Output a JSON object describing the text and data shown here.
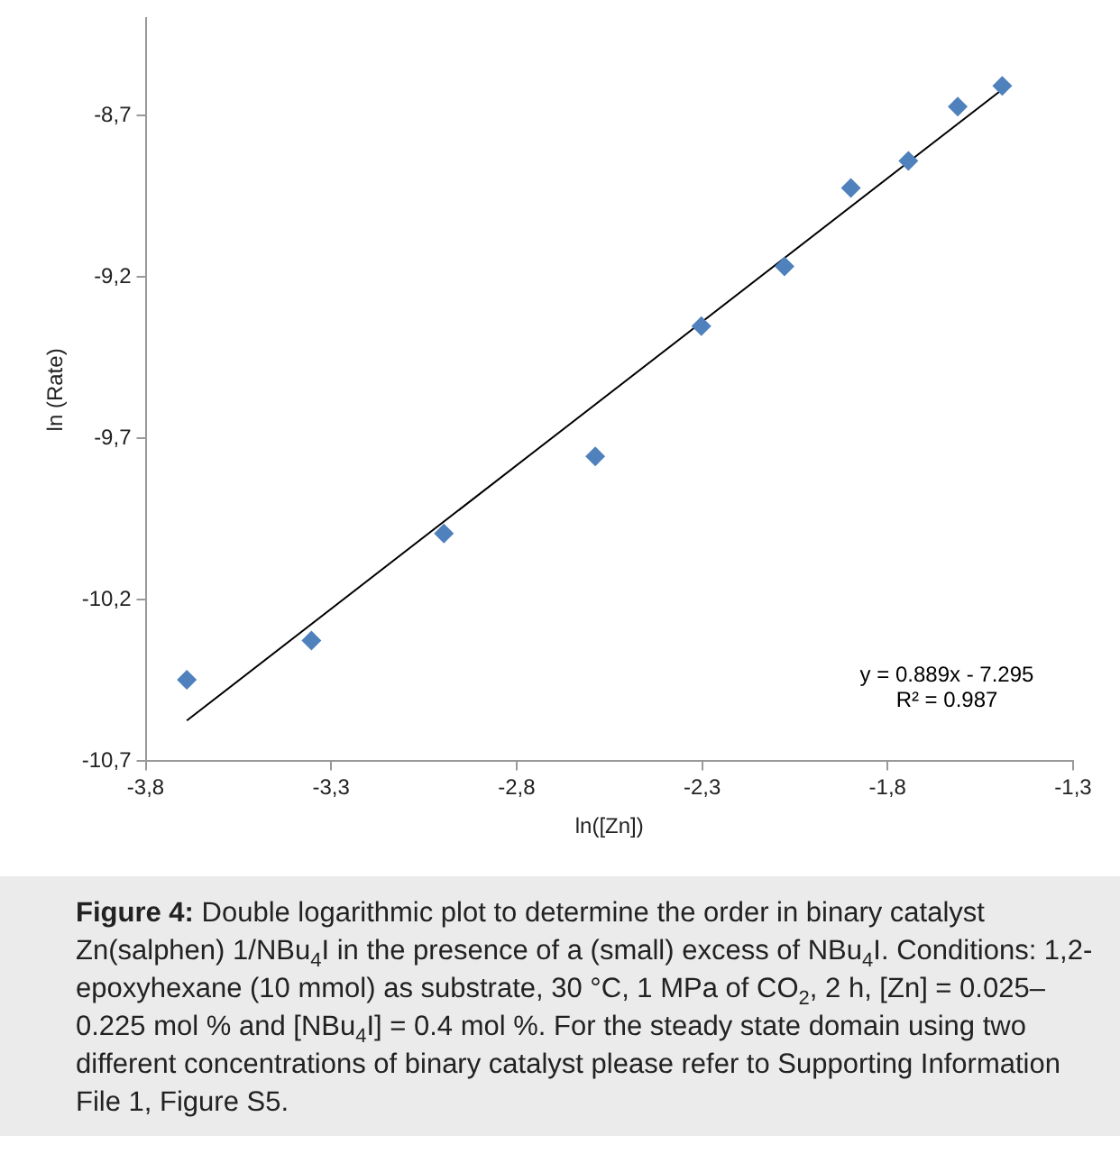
{
  "chart_data": {
    "type": "scatter",
    "xlabel": "ln([Zn])",
    "ylabel": "ln (Rate)",
    "xlim": [
      -3.8,
      -1.3
    ],
    "ylim": [
      -10.7,
      -8.4
    ],
    "xticks": [
      {
        "value": -3.8,
        "label": "-3,8"
      },
      {
        "value": -3.3,
        "label": "-3,3"
      },
      {
        "value": -2.8,
        "label": "-2,8"
      },
      {
        "value": -2.3,
        "label": "-2,3"
      },
      {
        "value": -1.8,
        "label": "-1,8"
      },
      {
        "value": -1.3,
        "label": "-1,3"
      }
    ],
    "yticks": [
      {
        "value": -10.7,
        "label": "-10,7"
      },
      {
        "value": -10.2,
        "label": "-10,2"
      },
      {
        "value": -9.7,
        "label": "-9,7"
      },
      {
        "value": -9.2,
        "label": "-9,2"
      },
      {
        "value": -8.7,
        "label": "-8,7"
      }
    ],
    "grid": false,
    "legend": false,
    "series": [
      {
        "color": "#4f81bd",
        "marker": "diamond",
        "x": [
          -3.689,
          -3.353,
          -2.996,
          -2.588,
          -2.302,
          -2.078,
          -1.899,
          -1.744,
          -1.611,
          -1.491
        ],
        "values": [
          -10.448,
          -10.326,
          -9.995,
          -9.756,
          -9.353,
          -9.168,
          -8.925,
          -8.841,
          -8.673,
          -8.609
        ]
      },
      {
        "type": "line",
        "color": "#000000",
        "marker": "none",
        "line_style": "solid",
        "x": [
          -3.689,
          -1.491
        ],
        "values": [
          -10.574,
          -8.62
        ]
      }
    ],
    "annotations": [
      "y = 0.889x - 7.295",
      "R² = 0.987",
      "Figure 4: Double logarithmic plot to determine the order in binary catalyst Zn(salphen) 1/NBu$_{4}$I in the presence of a (small) excess of NBu$_{4}$I. Conditions: 1,2-epoxyhexane (10 mmol) as substrate, 30 °C, 1 MPa of CO$_{2}$, 2 h, [Zn] = 0.025–0.225 mol % and [NBu$_{4}$I] = 0.4 mol %. For the steady state domain using two different concentrations of binary catalyst please refer to Supporting Information File 1, Figure S5."
    ]
  }
}
